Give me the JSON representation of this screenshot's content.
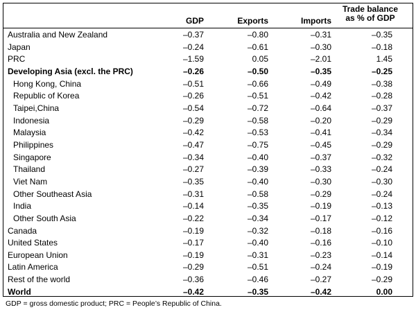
{
  "table": {
    "headers": {
      "region": "",
      "gdp": "GDP",
      "exports": "Exports",
      "imports": "Imports",
      "trade_balance_line1": "Trade balance",
      "trade_balance_line2": "as % of GDP"
    },
    "rows": [
      {
        "label": "Australia and New Zealand",
        "gdp": "–0.37",
        "exports": "–0.80",
        "imports": "–0.31",
        "trade_balance": "–0.35",
        "indent": false,
        "bold": false
      },
      {
        "label": "Japan",
        "gdp": "–0.24",
        "exports": "–0.61",
        "imports": "–0.30",
        "trade_balance": "–0.18",
        "indent": false,
        "bold": false
      },
      {
        "label": "PRC",
        "gdp": "–1.59",
        "exports": "0.05",
        "imports": "–2.01",
        "trade_balance": "1.45",
        "indent": false,
        "bold": false
      },
      {
        "label": "Developing Asia (excl. the PRC)",
        "gdp": "–0.26",
        "exports": "–0.50",
        "imports": "–0.35",
        "trade_balance": "–0.25",
        "indent": false,
        "bold": true
      },
      {
        "label": "Hong Kong, China",
        "gdp": "–0.51",
        "exports": "–0.66",
        "imports": "–0.49",
        "trade_balance": "–0.38",
        "indent": true,
        "bold": false
      },
      {
        "label": "Republic of Korea",
        "gdp": "–0.26",
        "exports": "–0.51",
        "imports": "–0.42",
        "trade_balance": "–0.28",
        "indent": true,
        "bold": false
      },
      {
        "label": "Taipei,China",
        "gdp": "–0.54",
        "exports": "–0.72",
        "imports": "–0.64",
        "trade_balance": "–0.37",
        "indent": true,
        "bold": false
      },
      {
        "label": "Indonesia",
        "gdp": "–0.29",
        "exports": "–0.58",
        "imports": "–0.20",
        "trade_balance": "–0.29",
        "indent": true,
        "bold": false
      },
      {
        "label": "Malaysia",
        "gdp": "–0.42",
        "exports": "–0.53",
        "imports": "–0.41",
        "trade_balance": "–0.34",
        "indent": true,
        "bold": false
      },
      {
        "label": "Philippines",
        "gdp": "–0.47",
        "exports": "–0.75",
        "imports": "–0.45",
        "trade_balance": "–0.29",
        "indent": true,
        "bold": false
      },
      {
        "label": "Singapore",
        "gdp": "–0.34",
        "exports": "–0.40",
        "imports": "–0.37",
        "trade_balance": "–0.32",
        "indent": true,
        "bold": false
      },
      {
        "label": "Thailand",
        "gdp": "–0.27",
        "exports": "–0.39",
        "imports": "–0.33",
        "trade_balance": "–0.24",
        "indent": true,
        "bold": false
      },
      {
        "label": "Viet Nam",
        "gdp": "–0.35",
        "exports": "–0.40",
        "imports": "–0.30",
        "trade_balance": "–0.30",
        "indent": true,
        "bold": false
      },
      {
        "label": "Other Southeast Asia",
        "gdp": "–0.31",
        "exports": "–0.58",
        "imports": "–0.29",
        "trade_balance": "–0.24",
        "indent": true,
        "bold": false
      },
      {
        "label": "India",
        "gdp": "–0.14",
        "exports": "–0.35",
        "imports": "–0.19",
        "trade_balance": "–0.13",
        "indent": true,
        "bold": false
      },
      {
        "label": "Other South Asia",
        "gdp": "–0.22",
        "exports": "–0.34",
        "imports": "–0.17",
        "trade_balance": "–0.12",
        "indent": true,
        "bold": false
      },
      {
        "label": "Canada",
        "gdp": "–0.19",
        "exports": "–0.32",
        "imports": "–0.18",
        "trade_balance": "–0.16",
        "indent": false,
        "bold": false
      },
      {
        "label": "United States",
        "gdp": "–0.17",
        "exports": "–0.40",
        "imports": "–0.16",
        "trade_balance": "–0.10",
        "indent": false,
        "bold": false
      },
      {
        "label": "European Union",
        "gdp": "–0.19",
        "exports": "–0.31",
        "imports": "–0.23",
        "trade_balance": "–0.14",
        "indent": false,
        "bold": false
      },
      {
        "label": "Latin America",
        "gdp": "–0.29",
        "exports": "–0.51",
        "imports": "–0.24",
        "trade_balance": "–0.19",
        "indent": false,
        "bold": false
      },
      {
        "label": "Rest of the world",
        "gdp": "–0.36",
        "exports": "–0.46",
        "imports": "–0.27",
        "trade_balance": "–0.29",
        "indent": false,
        "bold": false
      },
      {
        "label": "World",
        "gdp": "–0.42",
        "exports": "–0.35",
        "imports": "–0.42",
        "trade_balance": "0.00",
        "indent": false,
        "bold": true
      }
    ]
  },
  "footnote": "GDP = gross domestic product; PRC = People’s Republic of China."
}
